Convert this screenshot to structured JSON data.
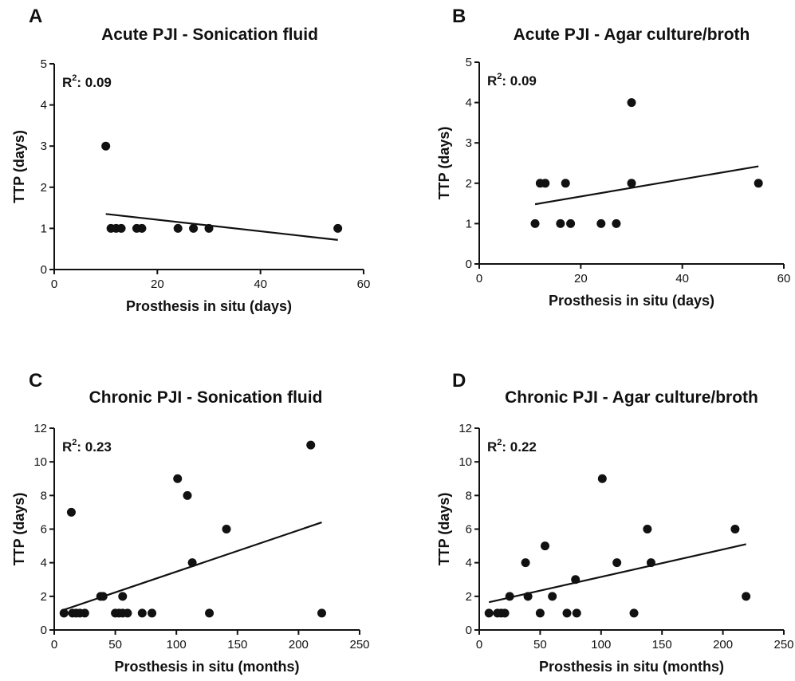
{
  "chart_data": [
    {
      "id": "A",
      "panel_label": "A",
      "type": "scatter",
      "title": "Acute PJI - Sonication fluid",
      "xlabel": "Prosthesis in situ (days)",
      "ylabel": "TTP (days)",
      "xlim": [
        0,
        60
      ],
      "ylim": [
        0,
        5
      ],
      "xticks": [
        0,
        20,
        40,
        60
      ],
      "yticks": [
        0,
        1,
        2,
        3,
        4,
        5
      ],
      "r2_label": "R",
      "r2_sup": "2",
      "r2_value": ": 0.09",
      "points": [
        {
          "x": 10,
          "y": 3
        },
        {
          "x": 11,
          "y": 1
        },
        {
          "x": 12,
          "y": 1
        },
        {
          "x": 13,
          "y": 1
        },
        {
          "x": 16,
          "y": 1
        },
        {
          "x": 17,
          "y": 1
        },
        {
          "x": 24,
          "y": 1
        },
        {
          "x": 27,
          "y": 1
        },
        {
          "x": 30,
          "y": 1
        },
        {
          "x": 55,
          "y": 1
        }
      ],
      "trendline": [
        {
          "x": 10,
          "y": 1.35
        },
        {
          "x": 55,
          "y": 0.72
        }
      ],
      "grid": false,
      "legend": "none"
    },
    {
      "id": "B",
      "panel_label": "B",
      "type": "scatter",
      "title": "Acute PJI - Agar culture/broth",
      "xlabel": "Prosthesis in situ (days)",
      "ylabel": "TTP (days)",
      "xlim": [
        0,
        60
      ],
      "ylim": [
        0,
        5
      ],
      "xticks": [
        0,
        20,
        40,
        60
      ],
      "yticks": [
        0,
        1,
        2,
        3,
        4,
        5
      ],
      "r2_label": "R",
      "r2_sup": "2",
      "r2_value": ": 0.09",
      "points": [
        {
          "x": 11,
          "y": 1
        },
        {
          "x": 12,
          "y": 2
        },
        {
          "x": 13,
          "y": 2
        },
        {
          "x": 16,
          "y": 1
        },
        {
          "x": 17,
          "y": 2
        },
        {
          "x": 18,
          "y": 1
        },
        {
          "x": 24,
          "y": 1
        },
        {
          "x": 27,
          "y": 1
        },
        {
          "x": 30,
          "y": 4
        },
        {
          "x": 30,
          "y": 2
        },
        {
          "x": 55,
          "y": 2
        }
      ],
      "trendline": [
        {
          "x": 11,
          "y": 1.48
        },
        {
          "x": 55,
          "y": 2.42
        }
      ],
      "grid": false,
      "legend": "none"
    },
    {
      "id": "C",
      "panel_label": "C",
      "type": "scatter",
      "title": "Chronic PJI - Sonication fluid",
      "xlabel": "Prosthesis in situ (months)",
      "ylabel": "TTP (days)",
      "xlim": [
        0,
        250
      ],
      "ylim": [
        0,
        12
      ],
      "xticks": [
        0,
        50,
        100,
        150,
        200,
        250
      ],
      "yticks": [
        0,
        2,
        4,
        6,
        8,
        10,
        12
      ],
      "r2_label": "R",
      "r2_sup": "2",
      "r2_value": ": 0.23",
      "points": [
        {
          "x": 8,
          "y": 1
        },
        {
          "x": 14,
          "y": 7
        },
        {
          "x": 15,
          "y": 1
        },
        {
          "x": 18,
          "y": 1
        },
        {
          "x": 21,
          "y": 1
        },
        {
          "x": 25,
          "y": 1
        },
        {
          "x": 38,
          "y": 2
        },
        {
          "x": 40,
          "y": 2
        },
        {
          "x": 50,
          "y": 1
        },
        {
          "x": 53,
          "y": 1
        },
        {
          "x": 56,
          "y": 2
        },
        {
          "x": 56,
          "y": 1
        },
        {
          "x": 60,
          "y": 1
        },
        {
          "x": 72,
          "y": 1
        },
        {
          "x": 80,
          "y": 1
        },
        {
          "x": 101,
          "y": 9
        },
        {
          "x": 109,
          "y": 8
        },
        {
          "x": 113,
          "y": 4
        },
        {
          "x": 127,
          "y": 1
        },
        {
          "x": 141,
          "y": 6
        },
        {
          "x": 210,
          "y": 11
        },
        {
          "x": 219,
          "y": 1
        }
      ],
      "trendline": [
        {
          "x": 8,
          "y": 1.2
        },
        {
          "x": 219,
          "y": 6.4
        }
      ],
      "grid": false,
      "legend": "none"
    },
    {
      "id": "D",
      "panel_label": "D",
      "type": "scatter",
      "title": "Chronic PJI - Agar culture/broth",
      "xlabel": "Prosthesis in situ (months)",
      "ylabel": "TTP (days)",
      "xlim": [
        0,
        250
      ],
      "ylim": [
        0,
        12
      ],
      "xticks": [
        0,
        50,
        100,
        150,
        200,
        250
      ],
      "yticks": [
        0,
        2,
        4,
        6,
        8,
        10,
        12
      ],
      "r2_label": "R",
      "r2_sup": "2",
      "r2_value": ": 0.22",
      "points": [
        {
          "x": 8,
          "y": 1
        },
        {
          "x": 15,
          "y": 1
        },
        {
          "x": 18,
          "y": 1
        },
        {
          "x": 21,
          "y": 1
        },
        {
          "x": 25,
          "y": 2
        },
        {
          "x": 38,
          "y": 4
        },
        {
          "x": 40,
          "y": 2
        },
        {
          "x": 50,
          "y": 1
        },
        {
          "x": 54,
          "y": 5
        },
        {
          "x": 60,
          "y": 2
        },
        {
          "x": 72,
          "y": 1
        },
        {
          "x": 79,
          "y": 3
        },
        {
          "x": 80,
          "y": 1
        },
        {
          "x": 101,
          "y": 9
        },
        {
          "x": 113,
          "y": 4
        },
        {
          "x": 127,
          "y": 1
        },
        {
          "x": 138,
          "y": 6
        },
        {
          "x": 141,
          "y": 4
        },
        {
          "x": 210,
          "y": 6
        },
        {
          "x": 219,
          "y": 2
        }
      ],
      "trendline": [
        {
          "x": 8,
          "y": 1.65
        },
        {
          "x": 219,
          "y": 5.1
        }
      ],
      "grid": false,
      "legend": "none"
    }
  ],
  "colors": {
    "ink": "#111111",
    "background": "#ffffff"
  }
}
